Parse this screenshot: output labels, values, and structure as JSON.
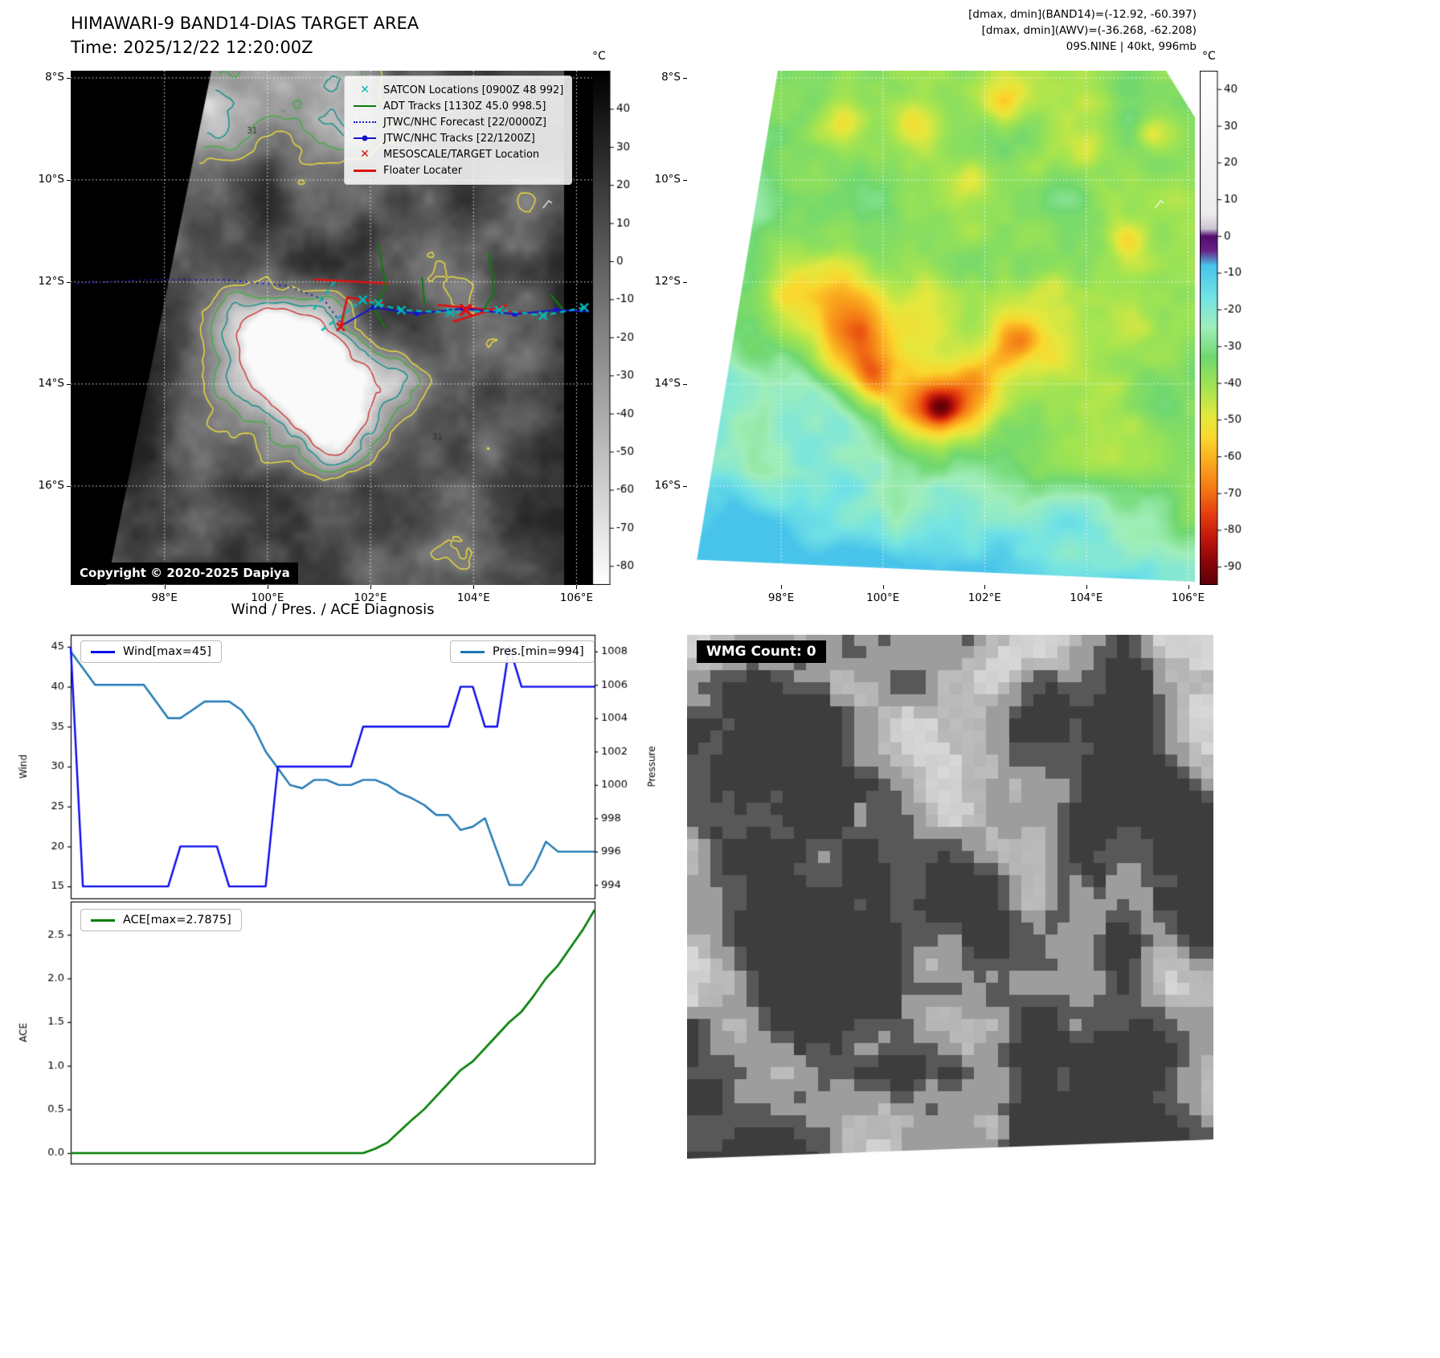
{
  "colors": {
    "wind_line": "#0b0bef",
    "pressure_line": "#1f77b4",
    "ace_line": "#007d00",
    "satcon": "#00b8b8",
    "adt": "#0a7d0a",
    "jtwc": "#1414cc",
    "red": "#dd1111"
  },
  "band14_panel": {
    "title": "HIMAWARI-9 BAND14-DIAS TARGET AREA",
    "time_label": "Time: 2025/12/22 12:20:00Z",
    "copyright": "Copyright © 2020-2025 Dapiya",
    "colorbar_unit": "°C",
    "colorbar_ticks": [
      40,
      30,
      20,
      10,
      0,
      -10,
      -20,
      -30,
      -40,
      -50,
      -60,
      -70,
      -80
    ],
    "x_ticks": [
      {
        "lon": 98,
        "label": "98°E"
      },
      {
        "lon": 100,
        "label": "100°E"
      },
      {
        "lon": 102,
        "label": "102°E"
      },
      {
        "lon": 104,
        "label": "104°E"
      },
      {
        "lon": 106,
        "label": "106°E"
      }
    ],
    "y_ticks": [
      {
        "lat": 8,
        "label": "8°S"
      },
      {
        "lat": 10,
        "label": "10°S"
      },
      {
        "lat": 12,
        "label": "12°S"
      },
      {
        "lat": 14,
        "label": "14°S"
      },
      {
        "lat": 16,
        "label": "16°S"
      }
    ],
    "legend": [
      {
        "label": "SATCON Locations [0900Z 48 992]",
        "style": "satcon-marker"
      },
      {
        "label": "ADT Tracks [1130Z 45.0 998.5]",
        "style": "adt-line"
      },
      {
        "label": "JTWC/NHC Forecast [22/0000Z]",
        "style": "forecast-line"
      },
      {
        "label": "JTWC/NHC Tracks [22/1200Z]",
        "style": "jtwc-line"
      },
      {
        "label": "MESOSCALE/TARGET Location",
        "style": "target-marker"
      },
      {
        "label": "Floater Locater",
        "style": "floater-line"
      }
    ],
    "contour_labels": [
      {
        "text": "31",
        "lon": 99.7,
        "lat": 9.05
      },
      {
        "text": "31",
        "lon": 103.3,
        "lat": 15.05
      }
    ],
    "tracks": {
      "forecast_dotted": [
        [
          96.3,
          12.03
        ],
        [
          97.6,
          11.96
        ],
        [
          99.2,
          11.96
        ],
        [
          100.4,
          12.08
        ],
        [
          101.1,
          12.35
        ],
        [
          101.45,
          12.85
        ]
      ],
      "jtwc_line": [
        [
          101.45,
          12.85
        ],
        [
          102.05,
          12.5
        ],
        [
          102.9,
          12.62
        ],
        [
          103.8,
          12.52
        ],
        [
          104.8,
          12.63
        ],
        [
          105.6,
          12.55
        ],
        [
          106.25,
          12.58
        ]
      ],
      "jtwc_markers": [
        [
          102.05,
          12.5
        ],
        [
          102.9,
          12.62
        ],
        [
          103.8,
          12.52
        ],
        [
          104.8,
          12.63
        ],
        [
          105.6,
          12.55
        ]
      ],
      "satcon_lines": [
        [
          [
            101.05,
            12.95
          ],
          [
            101.85,
            12.35
          ],
          [
            102.6,
            12.55
          ],
          [
            103.55,
            12.6
          ],
          [
            104.5,
            12.55
          ],
          [
            105.35,
            12.66
          ],
          [
            106.15,
            12.5
          ]
        ],
        [
          [
            101.3,
            12.0
          ],
          [
            100.85,
            12.6
          ]
        ]
      ],
      "satcon_markers": [
        [
          101.85,
          12.35
        ],
        [
          102.6,
          12.55
        ],
        [
          103.55,
          12.6
        ],
        [
          104.5,
          12.55
        ],
        [
          105.35,
          12.66
        ],
        [
          106.15,
          12.5
        ],
        [
          102.15,
          12.42
        ]
      ],
      "adt_lines": [
        [
          [
            102.15,
            11.25
          ],
          [
            102.3,
            12.1
          ],
          [
            102.05,
            12.5
          ],
          [
            102.3,
            12.92
          ]
        ],
        [
          [
            104.3,
            11.4
          ],
          [
            104.4,
            12.2
          ],
          [
            104.2,
            12.55
          ]
        ],
        [
          [
            105.5,
            12.25
          ],
          [
            105.75,
            12.55
          ]
        ],
        [
          [
            103.0,
            11.9
          ],
          [
            103.05,
            12.45
          ]
        ]
      ],
      "floater_lines": [
        [
          [
            100.9,
            11.95
          ],
          [
            102.35,
            12.03
          ]
        ],
        [
          [
            101.42,
            12.88
          ],
          [
            101.55,
            12.3
          ],
          [
            102.25,
            12.42
          ]
        ],
        [
          [
            103.3,
            12.45
          ],
          [
            104.95,
            12.6
          ]
        ],
        [
          [
            103.6,
            12.78
          ],
          [
            104.65,
            12.45
          ]
        ]
      ],
      "target_marker": [
        103.85,
        12.55
      ],
      "center_marker": [
        101.42,
        12.88
      ]
    }
  },
  "awv_panel": {
    "header_lines": [
      "[dmax, dmin](BAND14)=(-12.92, -60.397)",
      "[dmax, dmin](AWV)=(-36.268, -62.208)",
      "09S.NINE | 40kt, 996mb"
    ],
    "colorbar_unit": "°C",
    "colorbar_ticks": [
      40,
      30,
      20,
      10,
      0,
      -10,
      -20,
      -30,
      -40,
      -50,
      -60,
      -70,
      -80,
      -90
    ],
    "x_ticks": [
      {
        "lon": 98,
        "label": "98°E"
      },
      {
        "lon": 100,
        "label": "100°E"
      },
      {
        "lon": 102,
        "label": "102°E"
      },
      {
        "lon": 104,
        "label": "104°E"
      },
      {
        "lon": 106,
        "label": "106°E"
      }
    ],
    "y_ticks": [
      {
        "lat": 8,
        "label": "8°S"
      },
      {
        "lat": 10,
        "label": "10°S"
      },
      {
        "lat": 12,
        "label": "12°S"
      },
      {
        "lat": 14,
        "label": "14°S"
      },
      {
        "lat": 16,
        "label": "16°S"
      }
    ]
  },
  "diagnosis": {
    "title": "Wind / Pres. / ACE Diagnosis",
    "wind_legend": "Wind[max=45]",
    "pres_legend": "Pres.[min=994]",
    "ace_legend": "ACE[max=2.7875]",
    "wind_axis": {
      "label": "Wind",
      "ticks": [
        45,
        40,
        35,
        30,
        25,
        20,
        15
      ]
    },
    "pressure_axis": {
      "label": "Pressure",
      "ticks": [
        1008,
        1006,
        1004,
        1002,
        1000,
        998,
        996,
        994
      ]
    },
    "ace_axis": {
      "label": "ACE",
      "ticks": [
        2.5,
        2.0,
        1.5,
        1.0,
        0.5,
        0.0
      ]
    }
  },
  "wmg_panel": {
    "count_label": "WMG Count: 0"
  },
  "chart_data": [
    {
      "type": "line",
      "title": "Wind / Pres. / ACE Diagnosis (top subplot)",
      "x_note": "evenly spaced time steps, index 0-43 (no x tick labels shown)",
      "ylim_left": [
        13.5,
        46.5
      ],
      "ylim_right": [
        993.2,
        1009.0
      ],
      "series": [
        {
          "name": "Wind[max=45]",
          "axis": "left",
          "color": "#0b0bef",
          "values": [
            45,
            15,
            15,
            15,
            15,
            15,
            15,
            15,
            15,
            20,
            20,
            20,
            20,
            15,
            15,
            15,
            15,
            30,
            30,
            30,
            30,
            30,
            30,
            30,
            35,
            35,
            35,
            35,
            35,
            35,
            35,
            35,
            40,
            40,
            35,
            35,
            45,
            40,
            40,
            40,
            40,
            40,
            40,
            40
          ]
        },
        {
          "name": "Pres.[min=994]",
          "axis": "right",
          "color": "#1f77b4",
          "values": [
            1008,
            1007,
            1006,
            1006,
            1006,
            1006,
            1006,
            1005,
            1004,
            1004,
            1004.5,
            1005,
            1005,
            1005,
            1004.5,
            1003.5,
            1002,
            1001,
            1000,
            999.8,
            1000.3,
            1000.3,
            1000,
            1000,
            1000.3,
            1000.3,
            1000,
            999.5,
            999.2,
            998.8,
            998.2,
            998.2,
            997.3,
            997.5,
            998,
            996,
            994,
            994,
            995,
            996.6,
            996,
            996,
            996,
            996
          ]
        }
      ]
    },
    {
      "type": "line",
      "title": "ACE (bottom subplot)",
      "x_note": "evenly spaced time steps, index 0-43 (no x tick labels shown)",
      "ylim": [
        -0.12,
        2.88
      ],
      "series": [
        {
          "name": "ACE[max=2.7875]",
          "color": "#007d00",
          "values": [
            0,
            0,
            0,
            0,
            0,
            0,
            0,
            0,
            0,
            0,
            0,
            0,
            0,
            0,
            0,
            0,
            0,
            0,
            0,
            0,
            0,
            0,
            0,
            0,
            0,
            0.05,
            0.12,
            0.25,
            0.38,
            0.5,
            0.65,
            0.8,
            0.95,
            1.05,
            1.2,
            1.35,
            1.5,
            1.62,
            1.8,
            2.0,
            2.15,
            2.35,
            2.55,
            2.7875
          ]
        }
      ]
    }
  ]
}
